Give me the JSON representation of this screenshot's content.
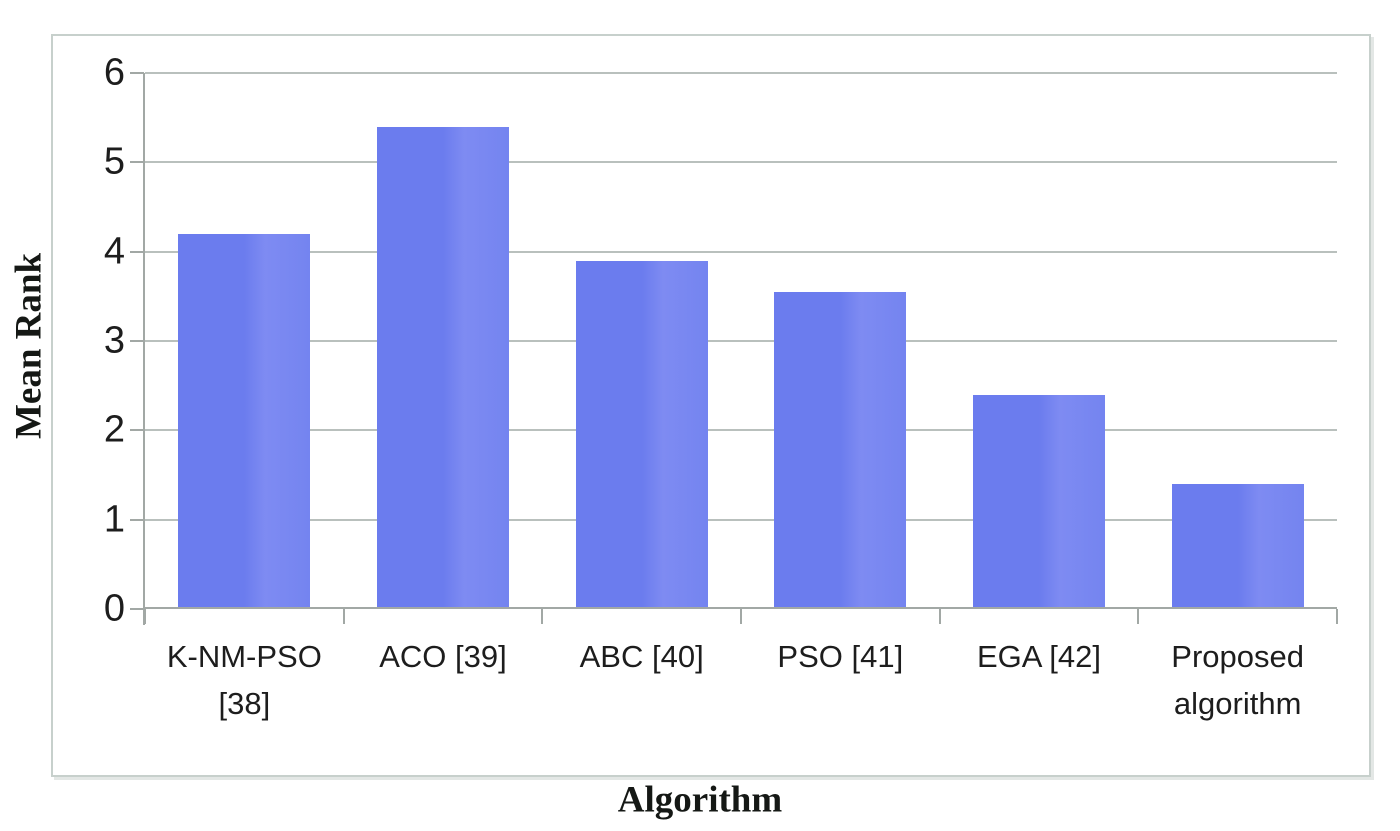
{
  "chart_data": {
    "type": "bar",
    "title": "",
    "xlabel": "Algorithm",
    "ylabel": "Mean Rank",
    "categories": [
      "K-NM-PSO [38]",
      "ACO [39]",
      "ABC [40]",
      "PSO [41]",
      "EGA [42]",
      "Proposed algorithm"
    ],
    "values": [
      4.2,
      5.4,
      3.9,
      3.55,
      2.4,
      1.4
    ],
    "ylim": [
      0,
      6
    ],
    "yticks": [
      0,
      1,
      2,
      3,
      4,
      5,
      6
    ],
    "grid": true,
    "legend_position": "none",
    "colors": {
      "bar": "#6b7cee",
      "bar_mid": "#7484f0",
      "bar_light": "#7e8bf2",
      "gridline": "#b9c0bd",
      "axis": "#a2a8a5",
      "frame_border": "#c7d0cc",
      "text": "#1d1d1d"
    }
  }
}
